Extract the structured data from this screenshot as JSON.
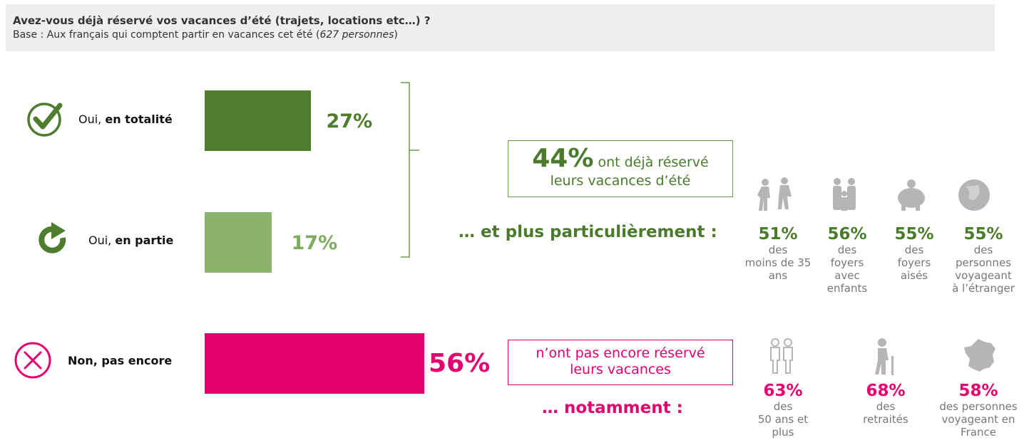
{
  "header": {
    "question": "Avez-vous déjà réservé vos vacances d’été (trajets, locations etc…) ?",
    "base_prefix": "Base : Aux français qui comptent partir en vacances cet été (",
    "base_italic": "627 personnes",
    "base_suffix": ")"
  },
  "chart_data": {
    "type": "bar",
    "orientation": "horizontal",
    "categories": [
      "Oui, en totalité",
      "Oui, en partie",
      "Non, pas encore"
    ],
    "values": [
      27,
      17,
      56
    ],
    "value_labels": [
      "27%",
      "17%",
      "56%"
    ],
    "colors": [
      "#4e7d2e",
      "#8bb36c",
      "#e5006f"
    ],
    "xlim": [
      0,
      100
    ]
  },
  "rows": [
    {
      "label_prefix": "Oui, ",
      "label_bold": "en totalité",
      "icon": "check-circle-icon"
    },
    {
      "label_prefix": "Oui, ",
      "label_bold": "en partie",
      "icon": "refresh-arrow-icon"
    },
    {
      "label_prefix": "",
      "label_bold": "Non, pas encore",
      "icon": "x-circle-icon"
    }
  ],
  "summary_green": {
    "value": "44%",
    "text_line1": " ont déjà réservé",
    "text_line2": "leurs vacances d’été"
  },
  "more_green": "… et plus particulièrement :",
  "green_stats": [
    {
      "value": "51%",
      "desc": [
        "des",
        "moins de 35",
        "ans"
      ],
      "icon": "people-icon"
    },
    {
      "value": "56%",
      "desc": [
        "des",
        "foyers",
        "avec",
        "enfants"
      ],
      "icon": "family-icon"
    },
    {
      "value": "55%",
      "desc": [
        "des",
        "foyers",
        "aisés"
      ],
      "icon": "piggy-bank-icon"
    },
    {
      "value": "55%",
      "desc": [
        "des",
        "personnes",
        "voyageant",
        "à l’étranger"
      ],
      "icon": "globe-icon"
    }
  ],
  "summary_pink": {
    "line1": "n’ont pas encore réservé",
    "line2": "leurs vacances"
  },
  "more_pink": "… notamment :",
  "pink_stats": [
    {
      "value": "63%",
      "desc": [
        "des",
        "50 ans et",
        "plus"
      ],
      "icon": "couple-icon"
    },
    {
      "value": "68%",
      "desc": [
        "des",
        "retraités"
      ],
      "icon": "elderly-person-icon"
    },
    {
      "value": "58%",
      "desc": [
        "des personnes",
        "voyageant  en",
        "France"
      ],
      "icon": "france-map-icon"
    }
  ],
  "colors": {
    "green_dark": "#4e7d2e",
    "green_light": "#8bb36c",
    "pink": "#e5006f",
    "grey_icon": "#b5b5b5"
  }
}
